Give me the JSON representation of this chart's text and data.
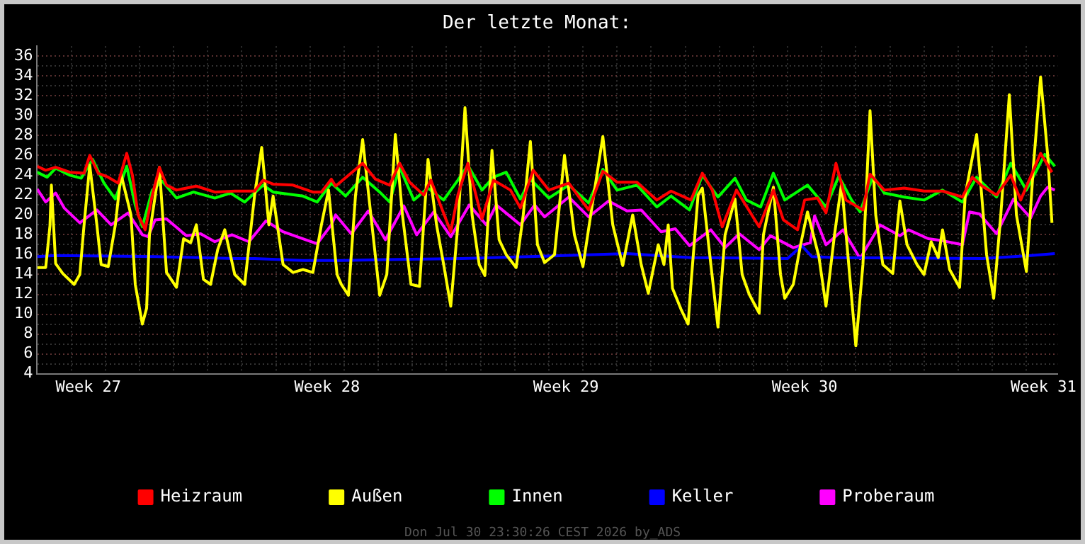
{
  "chart_data": {
    "type": "line",
    "title": "Der letzte Monat:",
    "xlim": [
      "2026-07-01T00:00",
      "2026-07-30T22:00"
    ],
    "ylim": [
      4,
      37
    ],
    "xticks": [
      {
        "value": "2026-07-01T00:00",
        "label": null
      },
      {
        "value": "2026-07-02T00:00",
        "label": null
      },
      {
        "value": "2026-07-02T12:00",
        "label": "Week 27"
      },
      {
        "value": "2026-07-03T00:00",
        "label": null
      },
      {
        "value": "2026-07-04T00:00",
        "label": null
      },
      {
        "value": "2026-07-05T00:00",
        "label": null
      },
      {
        "value": "2026-07-06T00:00",
        "label": null
      },
      {
        "value": "2026-07-07T00:00",
        "label": null
      },
      {
        "value": "2026-07-08T00:00",
        "label": null
      },
      {
        "value": "2026-07-09T00:00",
        "label": null
      },
      {
        "value": "2026-07-09T12:00",
        "label": "Week 28"
      },
      {
        "value": "2026-07-10T00:00",
        "label": null
      },
      {
        "value": "2026-07-11T00:00",
        "label": null
      },
      {
        "value": "2026-07-12T00:00",
        "label": null
      },
      {
        "value": "2026-07-13T00:00",
        "label": null
      },
      {
        "value": "2026-07-14T00:00",
        "label": null
      },
      {
        "value": "2026-07-15T00:00",
        "label": null
      },
      {
        "value": "2026-07-16T00:00",
        "label": null
      },
      {
        "value": "2026-07-16T12:00",
        "label": "Week 29"
      },
      {
        "value": "2026-07-17T00:00",
        "label": null
      },
      {
        "value": "2026-07-18T00:00",
        "label": null
      },
      {
        "value": "2026-07-19T00:00",
        "label": null
      },
      {
        "value": "2026-07-20T00:00",
        "label": null
      },
      {
        "value": "2026-07-21T00:00",
        "label": null
      },
      {
        "value": "2026-07-22T00:00",
        "label": null
      },
      {
        "value": "2026-07-23T00:00",
        "label": null
      },
      {
        "value": "2026-07-23T12:00",
        "label": "Week 30"
      },
      {
        "value": "2026-07-24T00:00",
        "label": null
      },
      {
        "value": "2026-07-25T00:00",
        "label": null
      },
      {
        "value": "2026-07-26T00:00",
        "label": null
      },
      {
        "value": "2026-07-27T00:00",
        "label": null
      },
      {
        "value": "2026-07-28T00:00",
        "label": null
      },
      {
        "value": "2026-07-29T00:00",
        "label": null
      },
      {
        "value": "2026-07-30T00:00",
        "label": null
      },
      {
        "value": "2026-07-30T12:00",
        "label": "Week 31"
      }
    ],
    "yticks": [
      4,
      {
        "value": 5,
        "label": null
      },
      6,
      {
        "value": 7,
        "label": null
      },
      8,
      {
        "value": 9,
        "label": null
      },
      10,
      {
        "value": 11,
        "label": null
      },
      12,
      {
        "value": 13,
        "label": null
      },
      14,
      {
        "value": 15,
        "label": null
      },
      16,
      {
        "value": 17,
        "label": null
      },
      18,
      {
        "value": 19,
        "label": null
      },
      20,
      {
        "value": 21,
        "label": null
      },
      22,
      {
        "value": 23,
        "label": null
      },
      24,
      {
        "value": 25,
        "label": null
      },
      26,
      {
        "value": 27,
        "label": null
      },
      28,
      {
        "value": 29,
        "label": null
      },
      30,
      {
        "value": 31,
        "label": null
      },
      32,
      {
        "value": 33,
        "label": null
      },
      34,
      {
        "value": 35,
        "label": null
      },
      36
    ],
    "grid": true,
    "legend": "bottom",
    "annotations": [
      "Don Jul 30 23:30:26 CEST 2026 by_ADS"
    ],
    "series": [
      {
        "name": "Heizraum",
        "color": "#ff0000",
        "x": [
          "2026-07-01T00:00",
          "2026-07-01T06:00",
          "2026-07-01T13:00",
          "2026-07-01T23:00",
          "2026-07-02T09:00",
          "2026-07-02T13:00",
          "2026-07-02T19:00",
          "2026-07-03T02:00",
          "2026-07-03T09:00",
          "2026-07-03T15:00",
          "2026-07-03T19:00",
          "2026-07-03T23:00",
          "2026-07-04T04:00",
          "2026-07-04T09:00",
          "2026-07-04T14:00",
          "2026-07-04T19:00",
          "2026-07-05T02:00",
          "2026-07-05T16:00",
          "2026-07-06T05:00",
          "2026-07-06T19:00",
          "2026-07-07T09:00",
          "2026-07-07T15:00",
          "2026-07-07T22:00",
          "2026-07-08T12:00",
          "2026-07-09T02:00",
          "2026-07-09T08:00",
          "2026-07-09T15:00",
          "2026-07-09T18:00",
          "2026-07-10T13:00",
          "2026-07-10T22:00",
          "2026-07-11T08:00",
          "2026-07-11T15:00",
          "2026-07-11T22:00",
          "2026-07-12T08:00",
          "2026-07-12T13:00",
          "2026-07-13T03:00",
          "2026-07-13T08:00",
          "2026-07-13T15:00",
          "2026-07-14T01:00",
          "2026-07-14T09:00",
          "2026-07-14T21:00",
          "2026-07-15T04:00",
          "2026-07-15T13:00",
          "2026-07-16T00:00",
          "2026-07-16T14:00",
          "2026-07-17T04:00",
          "2026-07-17T14:00",
          "2026-07-18T00:00",
          "2026-07-18T14:00",
          "2026-07-19T04:00",
          "2026-07-19T14:00",
          "2026-07-20T04:00",
          "2026-07-20T12:00",
          "2026-07-20T19:00",
          "2026-07-21T02:00",
          "2026-07-21T12:00",
          "2026-07-22T04:00",
          "2026-07-22T14:00",
          "2026-07-22T21:00",
          "2026-07-23T07:00",
          "2026-07-23T12:00",
          "2026-07-23T21:00",
          "2026-07-24T03:00",
          "2026-07-24T10:00",
          "2026-07-24T17:00",
          "2026-07-25T05:00",
          "2026-07-25T10:00",
          "2026-07-25T20:00",
          "2026-07-26T10:00",
          "2026-07-27T00:00",
          "2026-07-27T13:00",
          "2026-07-28T03:00",
          "2026-07-28T10:00",
          "2026-07-28T17:00",
          "2026-07-29T03:00",
          "2026-07-29T13:00",
          "2026-07-29T20:00",
          "2026-07-30T10:00",
          "2026-07-30T18:00"
        ],
        "values": [
          24.9,
          24.5,
          24.8,
          24.3,
          24.2,
          26,
          24.2,
          23.8,
          23.2,
          26.2,
          24,
          20,
          18.5,
          22,
          24.8,
          23,
          22.5,
          22.9,
          22.3,
          22.4,
          22.4,
          23.5,
          23.1,
          23,
          22.3,
          22.3,
          23.6,
          22.9,
          25.2,
          23.6,
          23,
          25.2,
          23.3,
          22,
          23.5,
          18.3,
          22,
          25.2,
          19.6,
          23.5,
          22.5,
          20.7,
          24.5,
          22.5,
          23.2,
          20.5,
          24.4,
          23.3,
          23.3,
          21.5,
          22.4,
          21.5,
          24.2,
          22.5,
          18.8,
          22.5,
          18.8,
          22.5,
          19.5,
          18.5,
          21.5,
          21.7,
          20.2,
          25.2,
          21.5,
          20.5,
          24.1,
          22.5,
          22.7,
          22.4,
          22.4,
          21.8,
          23.8,
          22.9,
          22,
          24,
          21.5,
          26.2,
          24.3
        ]
      },
      {
        "name": "Außen",
        "color": "#ffff00",
        "x": [
          "2026-07-01T00:00",
          "2026-07-01T06:00",
          "2026-07-01T09:00",
          "2026-07-01T10:00",
          "2026-07-01T13:00",
          "2026-07-01T18:00",
          "2026-07-02T02:00",
          "2026-07-02T06:00",
          "2026-07-02T09:00",
          "2026-07-02T13:00",
          "2026-07-02T18:00",
          "2026-07-02T21:00",
          "2026-07-03T02:00",
          "2026-07-03T07:00",
          "2026-07-03T11:00",
          "2026-07-03T18:00",
          "2026-07-03T21:00",
          "2026-07-04T02:00",
          "2026-07-04T05:00",
          "2026-07-04T07:00",
          "2026-07-04T14:00",
          "2026-07-04T19:00",
          "2026-07-05T02:00",
          "2026-07-05T07:00",
          "2026-07-05T12:00",
          "2026-07-05T16:00",
          "2026-07-05T21:00",
          "2026-07-06T02:00",
          "2026-07-06T07:00",
          "2026-07-06T12:00",
          "2026-07-06T19:00",
          "2026-07-07T02:00",
          "2026-07-07T09:00",
          "2026-07-07T14:00",
          "2026-07-07T19:00",
          "2026-07-07T22:00",
          "2026-07-08T05:00",
          "2026-07-08T12:00",
          "2026-07-08T19:00",
          "2026-07-09T02:00",
          "2026-07-09T08:00",
          "2026-07-09T13:00",
          "2026-07-09T19:00",
          "2026-07-09T22:00",
          "2026-07-10T03:00",
          "2026-07-10T08:00",
          "2026-07-10T13:00",
          "2026-07-10T18:00",
          "2026-07-11T01:00",
          "2026-07-11T06:00",
          "2026-07-11T12:00",
          "2026-07-11T17:00",
          "2026-07-11T23:00",
          "2026-07-12T05:00",
          "2026-07-12T11:00",
          "2026-07-12T17:00",
          "2026-07-12T22:00",
          "2026-07-13T03:00",
          "2026-07-13T08:00",
          "2026-07-13T13:00",
          "2026-07-13T18:00",
          "2026-07-13T23:00",
          "2026-07-14T03:00",
          "2026-07-14T08:00",
          "2026-07-14T13:00",
          "2026-07-14T18:00",
          "2026-07-15T01:00",
          "2026-07-15T06:00",
          "2026-07-15T11:00",
          "2026-07-15T16:00",
          "2026-07-15T21:00",
          "2026-07-16T04:00",
          "2026-07-16T11:00",
          "2026-07-16T18:00",
          "2026-07-17T00:00",
          "2026-07-17T06:00",
          "2026-07-17T14:00",
          "2026-07-17T21:00",
          "2026-07-18T04:00",
          "2026-07-18T11:00",
          "2026-07-18T17:00",
          "2026-07-18T22:00",
          "2026-07-19T05:00",
          "2026-07-19T09:00",
          "2026-07-19T12:00",
          "2026-07-19T15:00",
          "2026-07-19T21:00",
          "2026-07-20T02:00",
          "2026-07-20T04:00",
          "2026-07-20T09:00",
          "2026-07-20T12:00",
          "2026-07-20T18:00",
          "2026-07-20T23:00",
          "2026-07-21T04:00",
          "2026-07-21T11:00",
          "2026-07-21T16:00",
          "2026-07-21T21:00",
          "2026-07-22T04:00",
          "2026-07-22T07:00",
          "2026-07-22T14:00",
          "2026-07-22T19:00",
          "2026-07-22T22:00",
          "2026-07-23T04:00",
          "2026-07-23T09:00",
          "2026-07-23T14:00",
          "2026-07-23T22:00",
          "2026-07-24T03:00",
          "2026-07-24T09:00",
          "2026-07-24T14:00",
          "2026-07-24T19:00",
          "2026-07-25T00:00",
          "2026-07-25T05:00",
          "2026-07-25T10:00",
          "2026-07-25T14:00",
          "2026-07-25T19:00",
          "2026-07-26T02:00",
          "2026-07-26T07:00",
          "2026-07-26T12:00",
          "2026-07-26T19:00",
          "2026-07-27T00:00",
          "2026-07-27T05:00",
          "2026-07-27T10:00",
          "2026-07-27T13:00",
          "2026-07-27T18:00",
          "2026-07-28T01:00",
          "2026-07-28T05:00",
          "2026-07-28T13:00",
          "2026-07-28T20:00",
          "2026-07-29T01:00",
          "2026-07-29T06:00",
          "2026-07-29T12:00",
          "2026-07-29T17:00",
          "2026-07-30T00:00",
          "2026-07-30T05:00",
          "2026-07-30T10:00",
          "2026-07-30T15:00",
          "2026-07-30T18:00"
        ],
        "values": [
          14.7,
          14.7,
          18.9,
          23,
          15.1,
          14.1,
          13,
          14,
          19,
          25,
          19,
          15,
          14.8,
          19,
          24.1,
          20,
          13,
          9,
          10.6,
          18,
          24.8,
          14.2,
          12.7,
          17.6,
          17.2,
          19,
          13.5,
          13,
          16.5,
          18.5,
          14,
          13,
          22,
          26.8,
          19,
          21.9,
          15,
          14.2,
          14.5,
          14.2,
          19,
          22.5,
          14,
          13,
          11.9,
          22,
          27.6,
          21,
          11.9,
          14,
          28.1,
          20,
          13,
          12.8,
          25.6,
          19,
          15,
          10.8,
          19,
          30.8,
          20,
          15,
          13.9,
          26.5,
          17.5,
          16,
          14.7,
          20,
          27.4,
          17,
          15.2,
          16,
          26,
          18,
          14.8,
          20.5,
          27.9,
          19,
          14.9,
          20,
          15,
          12.1,
          17,
          15,
          19,
          12.6,
          10.5,
          9,
          13,
          22,
          22.7,
          15,
          8.7,
          18,
          21.6,
          14,
          12,
          10.1,
          18,
          22.8,
          14,
          11.6,
          13,
          16.9,
          20.3,
          15.8,
          10.8,
          18,
          23.2,
          15,
          6.8,
          15,
          30.5,
          20,
          15,
          14.1,
          21.4,
          17,
          15,
          14,
          17.3,
          15.7,
          18.5,
          14.5,
          12.7,
          22,
          28.1,
          16,
          11.6,
          20,
          32.1,
          20,
          14.3,
          25,
          33.9,
          26,
          19.2
        ]
      },
      {
        "name": "Innen",
        "color": "#00ff00",
        "x": [
          "2026-07-01T00:00",
          "2026-07-01T07:00",
          "2026-07-01T13:00",
          "2026-07-01T23:00",
          "2026-07-02T07:00",
          "2026-07-02T15:00",
          "2026-07-02T23:00",
          "2026-07-03T07:00",
          "2026-07-03T15:00",
          "2026-07-03T21:00",
          "2026-07-04T02:00",
          "2026-07-04T09:00",
          "2026-07-04T16:00",
          "2026-07-05T02:00",
          "2026-07-05T14:00",
          "2026-07-06T05:00",
          "2026-07-06T16:00",
          "2026-07-07T02:00",
          "2026-07-07T15:00",
          "2026-07-07T22:00",
          "2026-07-08T19:00",
          "2026-07-09T05:00",
          "2026-07-09T15:00",
          "2026-07-10T01:00",
          "2026-07-10T13:00",
          "2026-07-11T01:00",
          "2026-07-11T08:00",
          "2026-07-11T15:00",
          "2026-07-12T01:00",
          "2026-07-12T11:00",
          "2026-07-12T22:00",
          "2026-07-13T08:00",
          "2026-07-13T15:00",
          "2026-07-14T01:00",
          "2026-07-14T09:00",
          "2026-07-14T18:00",
          "2026-07-15T04:00",
          "2026-07-15T11:00",
          "2026-07-16T00:00",
          "2026-07-16T14:00",
          "2026-07-17T04:00",
          "2026-07-17T14:00",
          "2026-07-18T00:00",
          "2026-07-18T14:00",
          "2026-07-19T04:00",
          "2026-07-19T14:00",
          "2026-07-20T03:00",
          "2026-07-20T12:00",
          "2026-07-20T23:00",
          "2026-07-21T11:00",
          "2026-07-21T19:00",
          "2026-07-22T05:00",
          "2026-07-22T14:00",
          "2026-07-22T22:00",
          "2026-07-23T14:00",
          "2026-07-24T03:00",
          "2026-07-24T12:00",
          "2026-07-24T21:00",
          "2026-07-25T03:00",
          "2026-07-25T12:00",
          "2026-07-25T20:00",
          "2026-07-26T10:00",
          "2026-07-27T00:00",
          "2026-07-27T13:00",
          "2026-07-28T03:00",
          "2026-07-28T13:00",
          "2026-07-29T03:00",
          "2026-07-29T13:00",
          "2026-07-30T00:00",
          "2026-07-30T13:00",
          "2026-07-30T20:00"
        ],
        "values": [
          24.3,
          23.8,
          24.7,
          24,
          23.7,
          25.6,
          23.2,
          21.6,
          24.9,
          21,
          18.8,
          22.5,
          23.4,
          21.7,
          22.3,
          21.7,
          22.2,
          21.3,
          23,
          22.3,
          21.9,
          21.3,
          23.2,
          21.9,
          23.8,
          22.3,
          21.3,
          24.8,
          21.5,
          22.7,
          21.5,
          23.5,
          25,
          22.5,
          23.8,
          24.3,
          21.6,
          23.6,
          21.7,
          23,
          21.2,
          24.6,
          22.5,
          23,
          20.8,
          21.9,
          20.5,
          24,
          21.8,
          23.7,
          21.5,
          20.8,
          24.2,
          21.5,
          23,
          20.8,
          23.9,
          21.5,
          20.3,
          23.9,
          22.2,
          21.8,
          21.5,
          22.5,
          21.3,
          23.8,
          21.8,
          25.2,
          22.5,
          26.1,
          24.9
        ]
      },
      {
        "name": "Keller",
        "color": "#0000ff",
        "x": [
          "2026-07-01T00:00",
          "2026-07-01T13:00",
          "2026-07-04T12:00",
          "2026-07-06T19:00",
          "2026-07-07T09:00",
          "2026-07-08T19:00",
          "2026-07-09T22:00",
          "2026-07-11T05:00",
          "2026-07-13T11:00",
          "2026-07-16T11:00",
          "2026-07-18T07:00",
          "2026-07-20T04:00",
          "2026-07-23T00:00",
          "2026-07-23T10:00",
          "2026-07-23T17:00",
          "2026-07-24T10:00",
          "2026-07-28T17:00",
          "2026-07-30T03:00",
          "2026-07-30T20:00"
        ],
        "values": [
          15.8,
          15.9,
          15.8,
          15.6,
          15.6,
          15.4,
          15.4,
          15.5,
          15.6,
          15.9,
          16.1,
          15.7,
          15.6,
          16.9,
          15.8,
          15.7,
          15.6,
          15.9,
          16.1
        ]
      },
      {
        "name": "Proberaum",
        "color": "#ff00ff",
        "x": [
          "2026-07-01T00:00",
          "2026-07-01T06:00",
          "2026-07-01T13:00",
          "2026-07-01T19:00",
          "2026-07-02T06:00",
          "2026-07-02T18:00",
          "2026-07-03T04:00",
          "2026-07-03T16:00",
          "2026-07-04T02:00",
          "2026-07-04T06:00",
          "2026-07-04T11:00",
          "2026-07-04T19:00",
          "2026-07-05T09:00",
          "2026-07-05T19:00",
          "2026-07-06T05:00",
          "2026-07-06T17:00",
          "2026-07-07T05:00",
          "2026-07-07T17:00",
          "2026-07-08T05:00",
          "2026-07-08T19:00",
          "2026-07-09T05:00",
          "2026-07-09T15:00",
          "2026-07-09T18:00",
          "2026-07-10T05:00",
          "2026-07-10T17:00",
          "2026-07-11T05:00",
          "2026-07-11T18:00",
          "2026-07-12T03:00",
          "2026-07-12T15:00",
          "2026-07-13T03:00",
          "2026-07-13T16:00",
          "2026-07-14T04:00",
          "2026-07-14T11:00",
          "2026-07-15T04:00",
          "2026-07-15T14:00",
          "2026-07-15T21:00",
          "2026-07-16T14:00",
          "2026-07-17T04:00",
          "2026-07-17T18:00",
          "2026-07-18T07:00",
          "2026-07-18T17:00",
          "2026-07-19T07:00",
          "2026-07-19T17:00",
          "2026-07-20T03:00",
          "2026-07-20T18:00",
          "2026-07-21T04:00",
          "2026-07-21T14:00",
          "2026-07-22T04:00",
          "2026-07-22T12:00",
          "2026-07-23T04:00",
          "2026-07-23T16:00",
          "2026-07-23T19:00",
          "2026-07-24T03:00",
          "2026-07-24T15:00",
          "2026-07-25T03:00",
          "2026-07-25T17:00",
          "2026-07-26T07:00",
          "2026-07-26T13:00",
          "2026-07-27T03:00",
          "2026-07-27T13:00",
          "2026-07-28T03:00",
          "2026-07-28T08:00",
          "2026-07-28T15:00",
          "2026-07-29T03:00",
          "2026-07-29T15:00",
          "2026-07-30T03:00",
          "2026-07-30T10:00",
          "2026-07-30T15:00",
          "2026-07-30T20:00"
        ],
        "values": [
          22.6,
          21.3,
          22.2,
          20.7,
          19.2,
          20.5,
          19,
          20.2,
          18,
          17.8,
          19.5,
          19.6,
          17.9,
          18.1,
          17.3,
          18,
          17.3,
          19.4,
          18.3,
          17.6,
          17.1,
          19,
          20,
          18.1,
          20.4,
          17.5,
          20.9,
          18,
          20.3,
          17.8,
          21,
          19,
          21,
          19,
          21,
          19.8,
          21.8,
          19.8,
          21.4,
          20.4,
          20.5,
          18.3,
          18.6,
          16.9,
          18.5,
          16.7,
          18.1,
          16.5,
          17.9,
          16.7,
          17.2,
          19.9,
          17,
          18.5,
          15.6,
          19,
          17.9,
          18.5,
          17.6,
          17.4,
          17,
          20.3,
          20.1,
          18.1,
          21.6,
          19.7,
          21.9,
          22.8,
          22.5
        ]
      }
    ]
  }
}
